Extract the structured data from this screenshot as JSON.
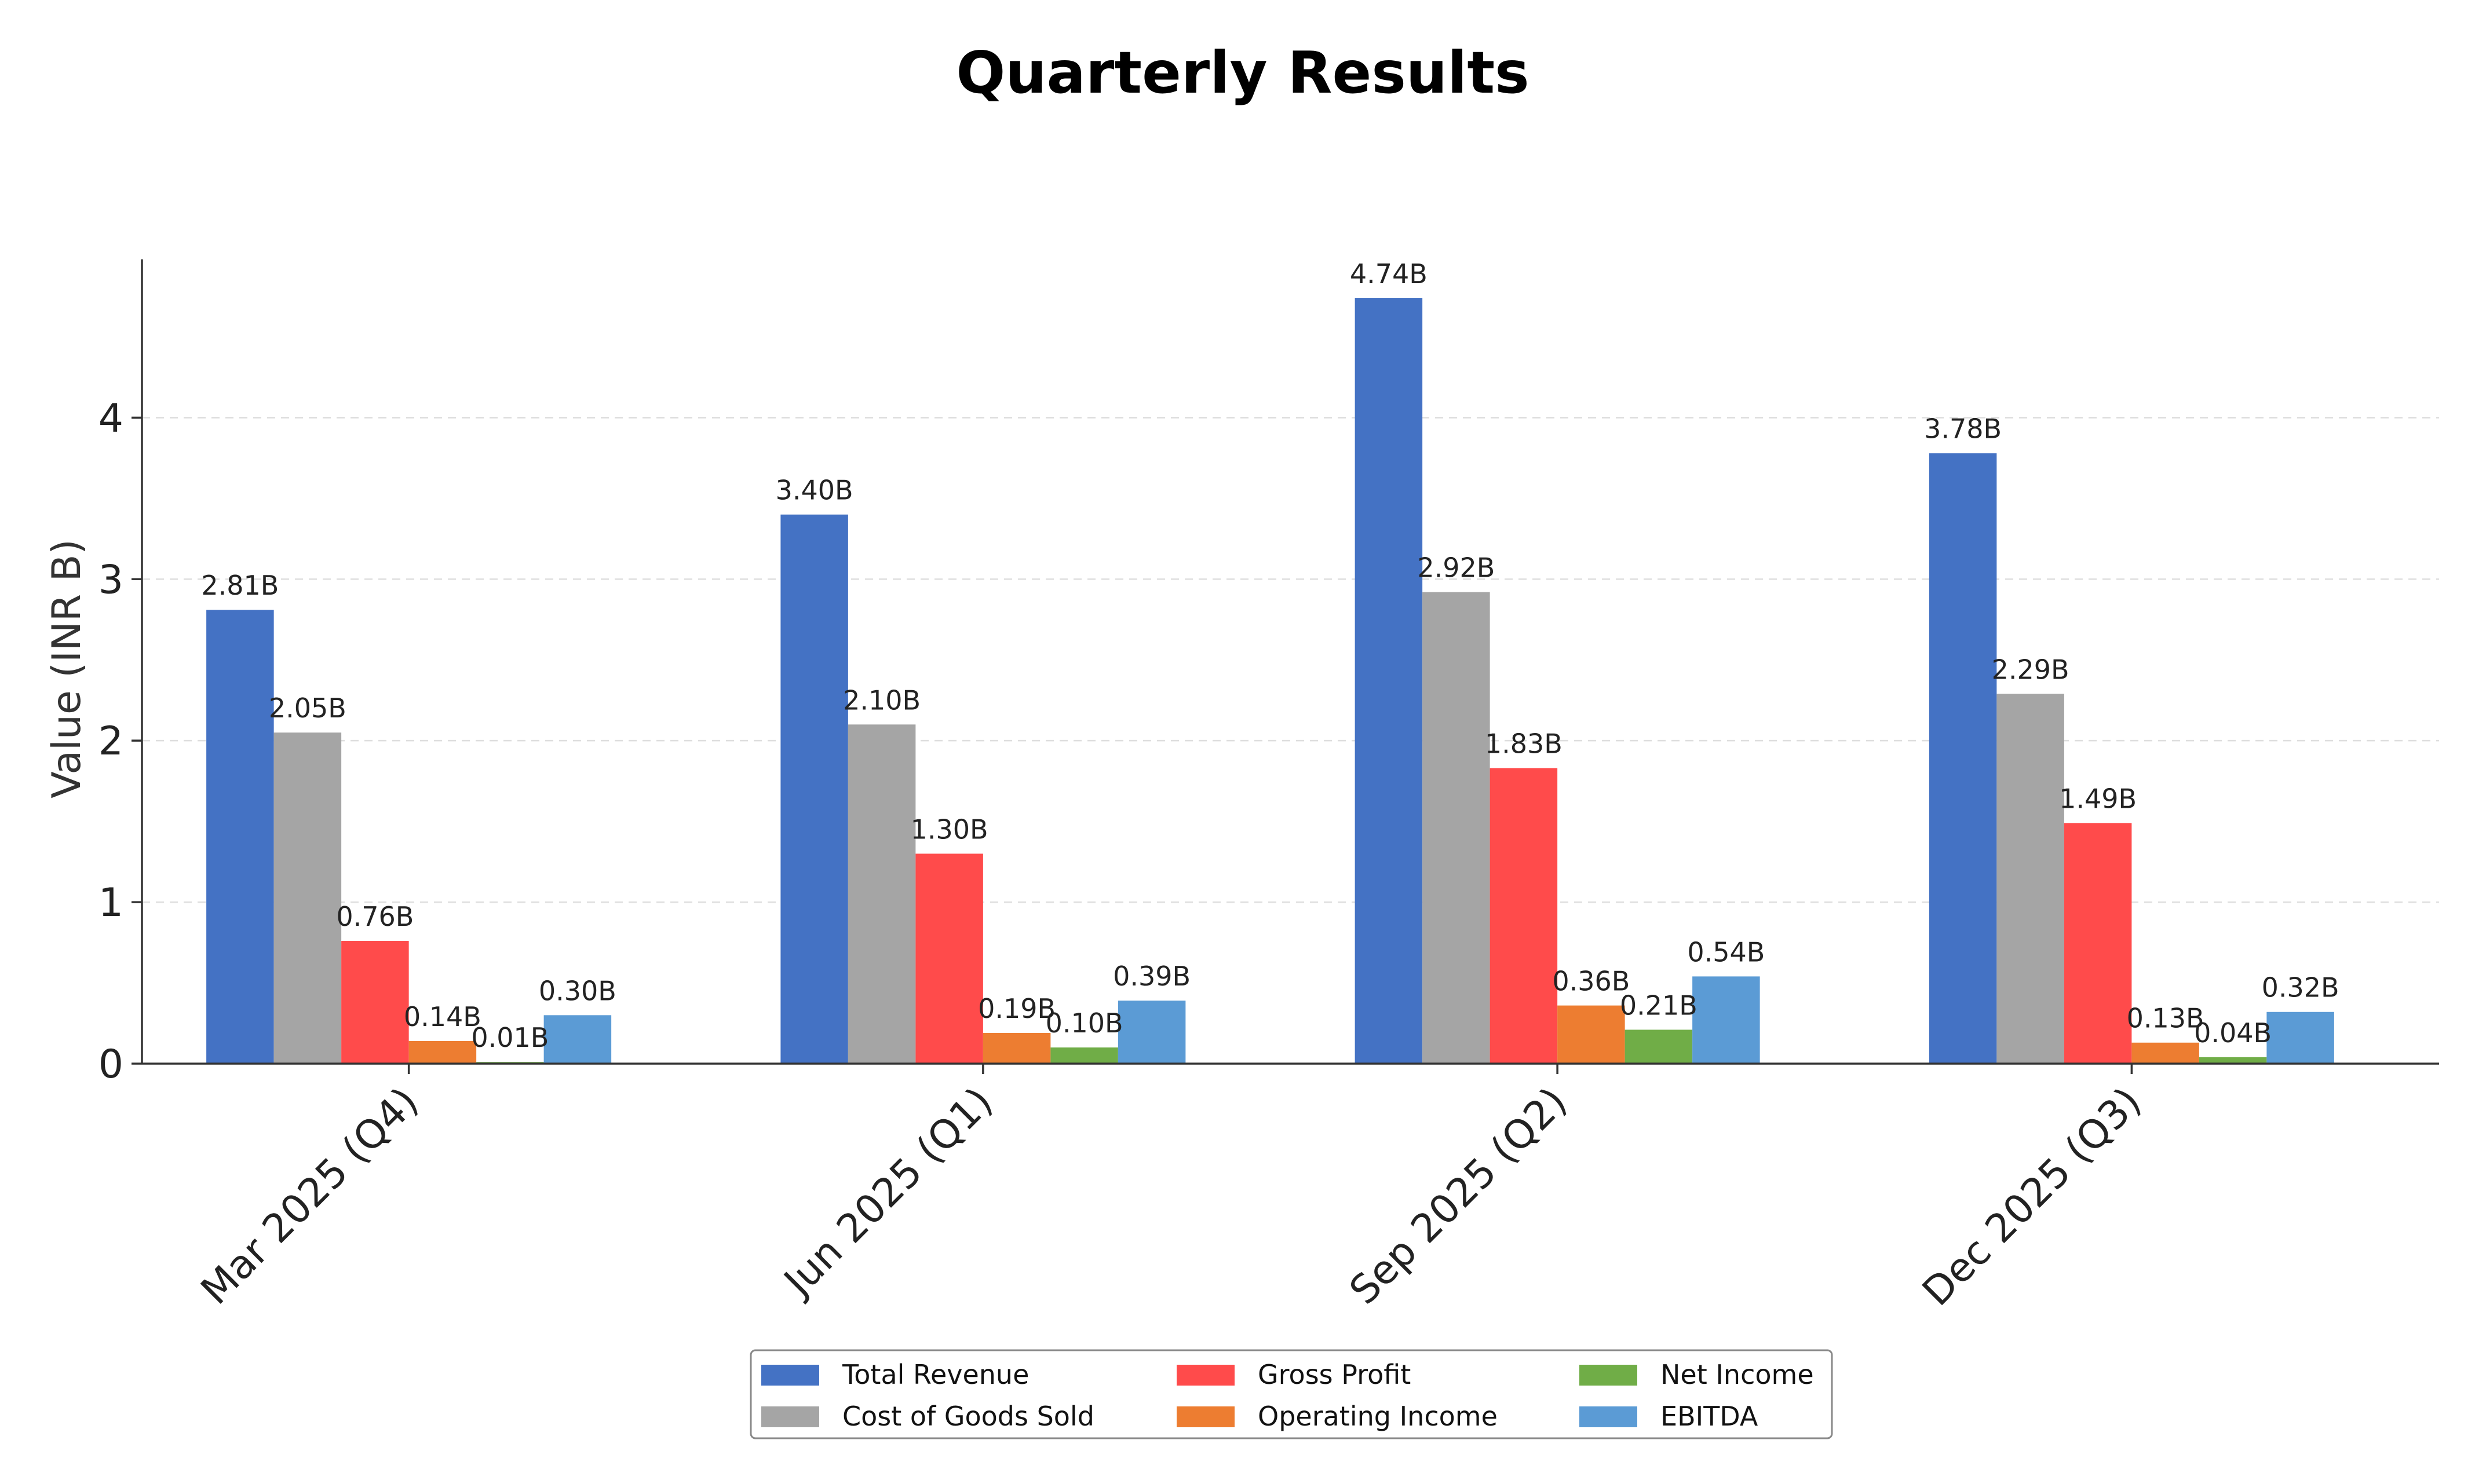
{
  "chart_data": {
    "type": "bar",
    "title": "Quarterly Results",
    "xlabel": "",
    "ylabel": "Value (INR B)",
    "ylim": [
      0,
      4.98
    ],
    "yticks": [
      0,
      1,
      2,
      3,
      4
    ],
    "grid": true,
    "legend_position": "bottom-center",
    "categories": [
      "Mar 2025 (Q4)",
      "Jun 2025 (Q1)",
      "Sep 2025 (Q2)",
      "Dec 2025 (Q3)"
    ],
    "series": [
      {
        "name": "Total Revenue",
        "color": "#4472C4",
        "values": [
          2.81,
          3.4,
          4.74,
          3.78
        ],
        "labels": [
          "2.81B",
          "3.40B",
          "4.74B",
          "3.78B"
        ]
      },
      {
        "name": "Cost of Goods Sold",
        "color": "#A5A5A5",
        "values": [
          2.05,
          2.1,
          2.92,
          2.29
        ],
        "labels": [
          "2.05B",
          "2.10B",
          "2.92B",
          "2.29B"
        ]
      },
      {
        "name": "Gross Profit",
        "color": "#FF4B4B",
        "values": [
          0.76,
          1.3,
          1.83,
          1.49
        ],
        "labels": [
          "0.76B",
          "1.30B",
          "1.83B",
          "1.49B"
        ]
      },
      {
        "name": "Operating Income",
        "color": "#ED7D31",
        "values": [
          0.14,
          0.19,
          0.36,
          0.13
        ],
        "labels": [
          "0.14B",
          "0.19B",
          "0.36B",
          "0.13B"
        ]
      },
      {
        "name": "Net Income",
        "color": "#70AD47",
        "values": [
          0.01,
          0.1,
          0.21,
          0.04
        ],
        "labels": [
          "0.01B",
          "0.10B",
          "0.21B",
          "0.04B"
        ]
      },
      {
        "name": "EBITDA",
        "color": "#5B9BD5",
        "values": [
          0.3,
          0.39,
          0.54,
          0.32
        ],
        "labels": [
          "0.30B",
          "0.39B",
          "0.54B",
          "0.32B"
        ]
      }
    ]
  }
}
